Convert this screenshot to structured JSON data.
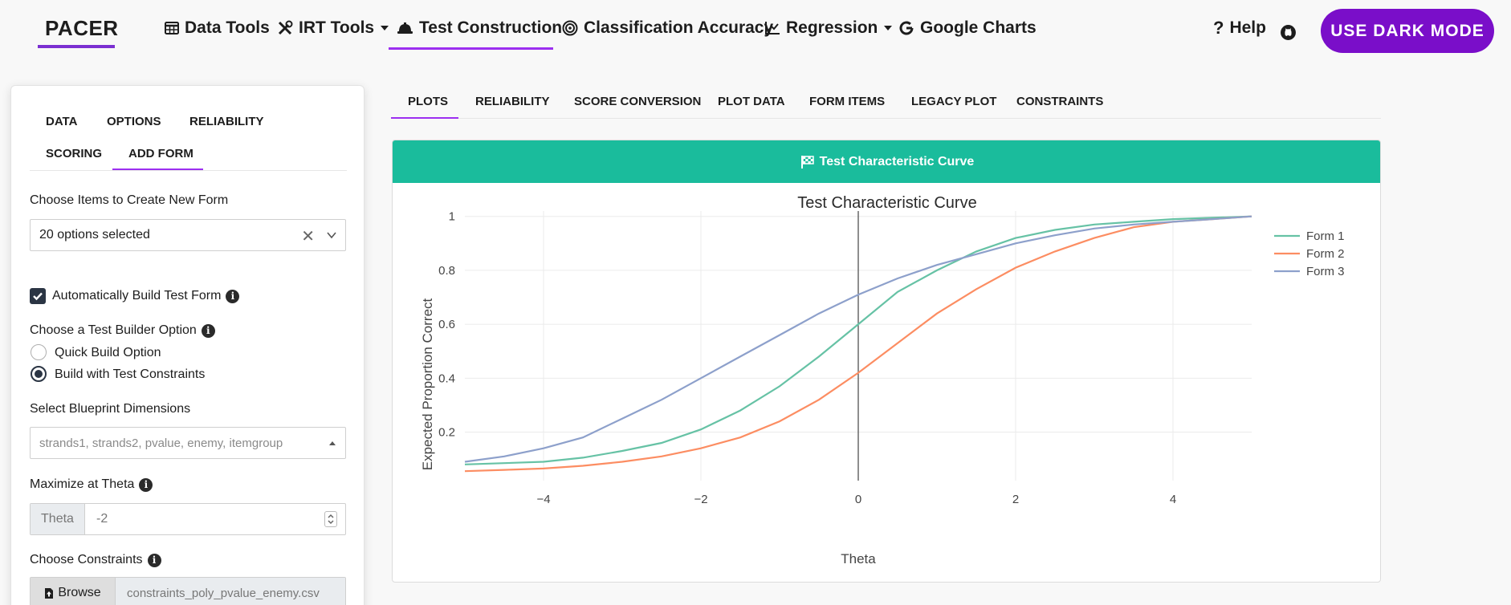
{
  "brand": "PACER",
  "nav": {
    "data_tools": "Data Tools",
    "irt_tools": "IRT Tools",
    "test_construction": "Test Construction",
    "classification_accuracy": "Classification Accuracy",
    "regression": "Regression",
    "google_charts": "Google Charts",
    "help": "Help",
    "dark_mode": "USE DARK MODE"
  },
  "sidebar": {
    "tabs": {
      "data": "DATA",
      "options": "OPTIONS",
      "reliability": "RELIABILITY",
      "scoring": "SCORING",
      "add_form": "ADD FORM"
    },
    "items_label": "Choose Items to Create New Form",
    "items_value": "20 options selected",
    "auto_build_label": "Automatically Build Test Form",
    "builder_label": "Choose a Test Builder Option",
    "builder_options": [
      "Quick Build Option",
      "Build with Test Constraints"
    ],
    "builder_selected": "Build with Test Constraints",
    "blueprint_label": "Select Blueprint Dimensions",
    "blueprint_placeholder": "strands1, strands2, pvalue, enemy, itemgroup",
    "theta_label": "Maximize at Theta",
    "theta_addon": "Theta",
    "theta_value": "-2",
    "constraints_label": "Choose Constraints",
    "browse_label": "Browse",
    "constraints_file": "constraints_poly_pvalue_enemy.csv"
  },
  "main_tabs": [
    "PLOTS",
    "RELIABILITY",
    "SCORE CONVERSION",
    "PLOT DATA",
    "FORM ITEMS",
    "LEGACY PLOT",
    "CONSTRAINTS"
  ],
  "active_tab": "PLOTS",
  "card_title": "Test Characteristic Curve",
  "colors": {
    "accent": "#7a0ec9",
    "header": "#1abc9c"
  },
  "chart_data": {
    "type": "line",
    "title": "Test Characteristic Curve",
    "xlabel": "Theta",
    "ylabel": "Expected Proportion Correct",
    "xlim": [
      -5,
      5
    ],
    "ylim": [
      0.02,
      1.02
    ],
    "xticks": [
      -4,
      -2,
      0,
      2,
      4
    ],
    "xtick_labels": [
      "−4",
      "−2",
      "0",
      "2",
      "4"
    ],
    "yticks": [
      0.2,
      0.4,
      0.6,
      0.8,
      1
    ],
    "ytick_labels": [
      "0.2",
      "0.4",
      "0.6",
      "0.8",
      "1"
    ],
    "vline_x": 0,
    "legend_position": "top-right",
    "x": [
      -5,
      -4.5,
      -4,
      -3.5,
      -3,
      -2.5,
      -2,
      -1.5,
      -1,
      -0.5,
      0,
      0.5,
      1,
      1.5,
      2,
      2.5,
      3,
      3.5,
      4,
      4.5,
      5
    ],
    "series": [
      {
        "name": "Form 1",
        "color": "#66c2a5",
        "values": [
          0.08,
          0.085,
          0.09,
          0.105,
          0.13,
          0.16,
          0.21,
          0.28,
          0.37,
          0.48,
          0.6,
          0.72,
          0.8,
          0.87,
          0.92,
          0.95,
          0.97,
          0.98,
          0.99,
          0.995,
          1.0
        ]
      },
      {
        "name": "Form 2",
        "color": "#fc8d62",
        "values": [
          0.055,
          0.06,
          0.065,
          0.075,
          0.09,
          0.11,
          0.14,
          0.18,
          0.24,
          0.32,
          0.42,
          0.53,
          0.64,
          0.73,
          0.81,
          0.87,
          0.92,
          0.96,
          0.98,
          0.99,
          1.0
        ]
      },
      {
        "name": "Form 3",
        "color": "#8da0cb",
        "values": [
          0.09,
          0.11,
          0.14,
          0.18,
          0.25,
          0.32,
          0.4,
          0.48,
          0.56,
          0.64,
          0.71,
          0.77,
          0.82,
          0.86,
          0.9,
          0.93,
          0.955,
          0.97,
          0.98,
          0.99,
          1.0
        ]
      }
    ]
  }
}
